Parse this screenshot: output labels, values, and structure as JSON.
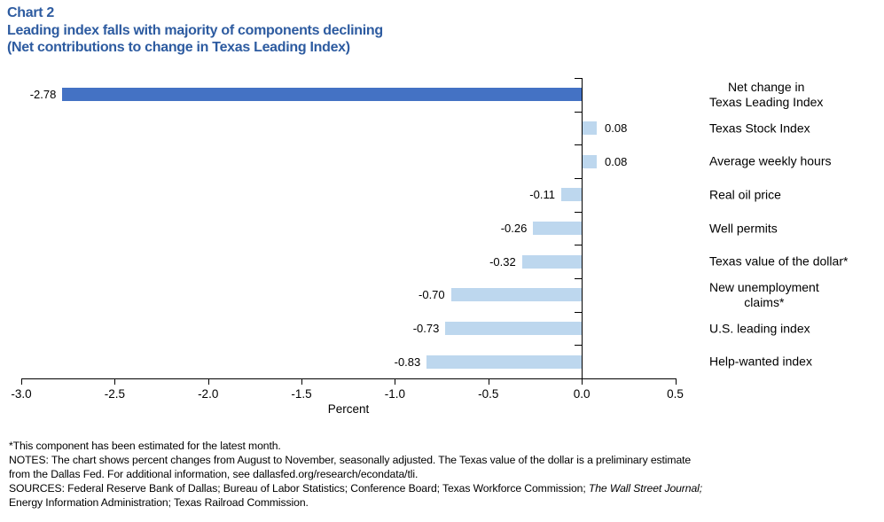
{
  "header": {
    "chart_label": "Chart 2",
    "title": "Leading index falls with majority of components declining",
    "subtitle": "(Net contributions to change in Texas Leading Index)"
  },
  "colors": {
    "title_blue": "#2D5BA0",
    "bar_highlight": "#4472C4",
    "bar_default": "#BDD7EE",
    "axis": "#000000"
  },
  "chart_data": {
    "type": "bar",
    "orientation": "horizontal",
    "title": "Chart 2 — Leading index falls with majority of components declining (Net contributions to change in Texas Leading Index)",
    "categories": [
      "Net change in\nTexas Leading Index",
      "Texas Stock Index",
      "Average weekly hours",
      "Real oil price",
      "Well permits",
      "Texas value of the dollar*",
      "New unemployment\nclaims*",
      "U.S. leading index",
      "Help-wanted index"
    ],
    "values": [
      -2.78,
      0.08,
      0.08,
      -0.11,
      -0.26,
      -0.32,
      -0.7,
      -0.73,
      -0.83
    ],
    "value_labels": [
      "-2.78",
      "0.08",
      "0.08",
      "-0.11",
      "-0.26",
      "-0.32",
      "-0.70",
      "-0.73",
      "-0.83"
    ],
    "highlight_index": 0,
    "xlabel": "Percent",
    "xlim": [
      -3.0,
      0.5
    ],
    "xticks": [
      -3.0,
      -2.5,
      -2.0,
      -1.5,
      -1.0,
      -0.5,
      0.0,
      0.5
    ],
    "xtick_labels": [
      "-3.0",
      "-2.5",
      "-2.0",
      "-1.5",
      "-1.0",
      "-0.5",
      "0.0",
      "0.5"
    ],
    "grid": false,
    "legend": false
  },
  "footnotes": {
    "lines": [
      [
        {
          "t": "*This component has been estimated for the latest month."
        }
      ],
      [
        {
          "t": "NOTES: The chart shows percent changes from August to November, seasonally adjusted. The Texas value of the dollar is a preliminary estimate"
        }
      ],
      [
        {
          "t": "from the Dallas Fed. For additional information, see dallasfed.org/research/econdata/tli."
        }
      ],
      [
        {
          "t": "SOURCES: Federal Reserve Bank of Dallas; Bureau of Labor Statistics; Conference Board; Texas Workforce Commission; "
        },
        {
          "t": "The Wall Street Journal;",
          "i": true
        }
      ],
      [
        {
          "t": "Energy Information Administration; Texas Railroad Commission."
        }
      ]
    ]
  }
}
